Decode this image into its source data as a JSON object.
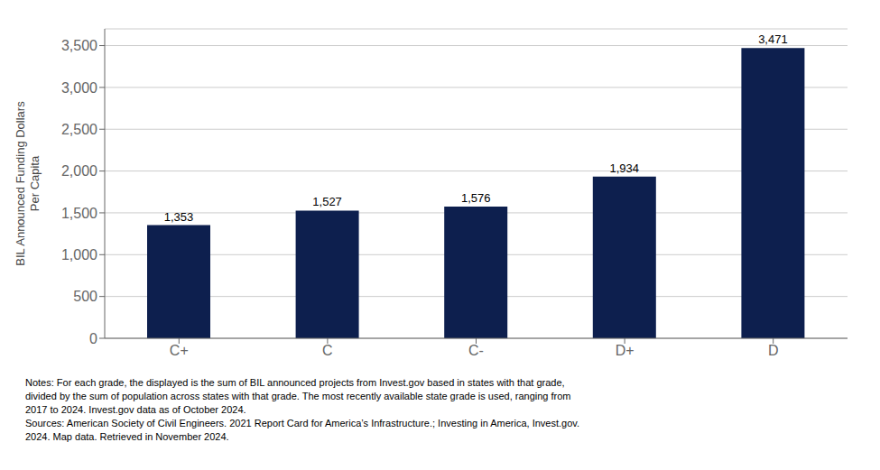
{
  "chart_data": {
    "type": "bar",
    "categories": [
      "C+",
      "C",
      "C-",
      "D+",
      "D"
    ],
    "values": [
      1353,
      1527,
      1576,
      1934,
      3471
    ],
    "value_labels": [
      "1,353",
      "1,527",
      "1,576",
      "1,934",
      "3,471"
    ],
    "data_labels": true,
    "color": "#0d1f4e",
    "ylabel": "BIL Announced Funding Dollars\nPer Capita",
    "ylim": [
      0,
      3700
    ],
    "yticks": [
      0,
      500,
      {
        "value": 1000,
        "label": "1,000"
      },
      {
        "value": 1500,
        "label": "1,500"
      },
      {
        "value": 2000,
        "label": "2,000"
      },
      {
        "value": 2500,
        "label": "2,500"
      },
      {
        "value": 3000,
        "label": "3,000"
      },
      {
        "value": 3500,
        "label": "3,500"
      }
    ],
    "grid": true,
    "annotations": [
      "Notes: For each grade, the displayed is the sum of BIL announced projects from Invest.gov based in states with that grade,",
      "divided by the sum of population across states with that grade. The most recently available state grade is used, ranging from",
      "2017 to 2024. Invest.gov data as of October 2024.",
      "Sources: American Society of Civil Engineers. 2021 Report Card for America’s Infrastructure.; Investing in America, Invest.gov.",
      "2024. Map data. Retrieved in November 2024."
    ]
  }
}
